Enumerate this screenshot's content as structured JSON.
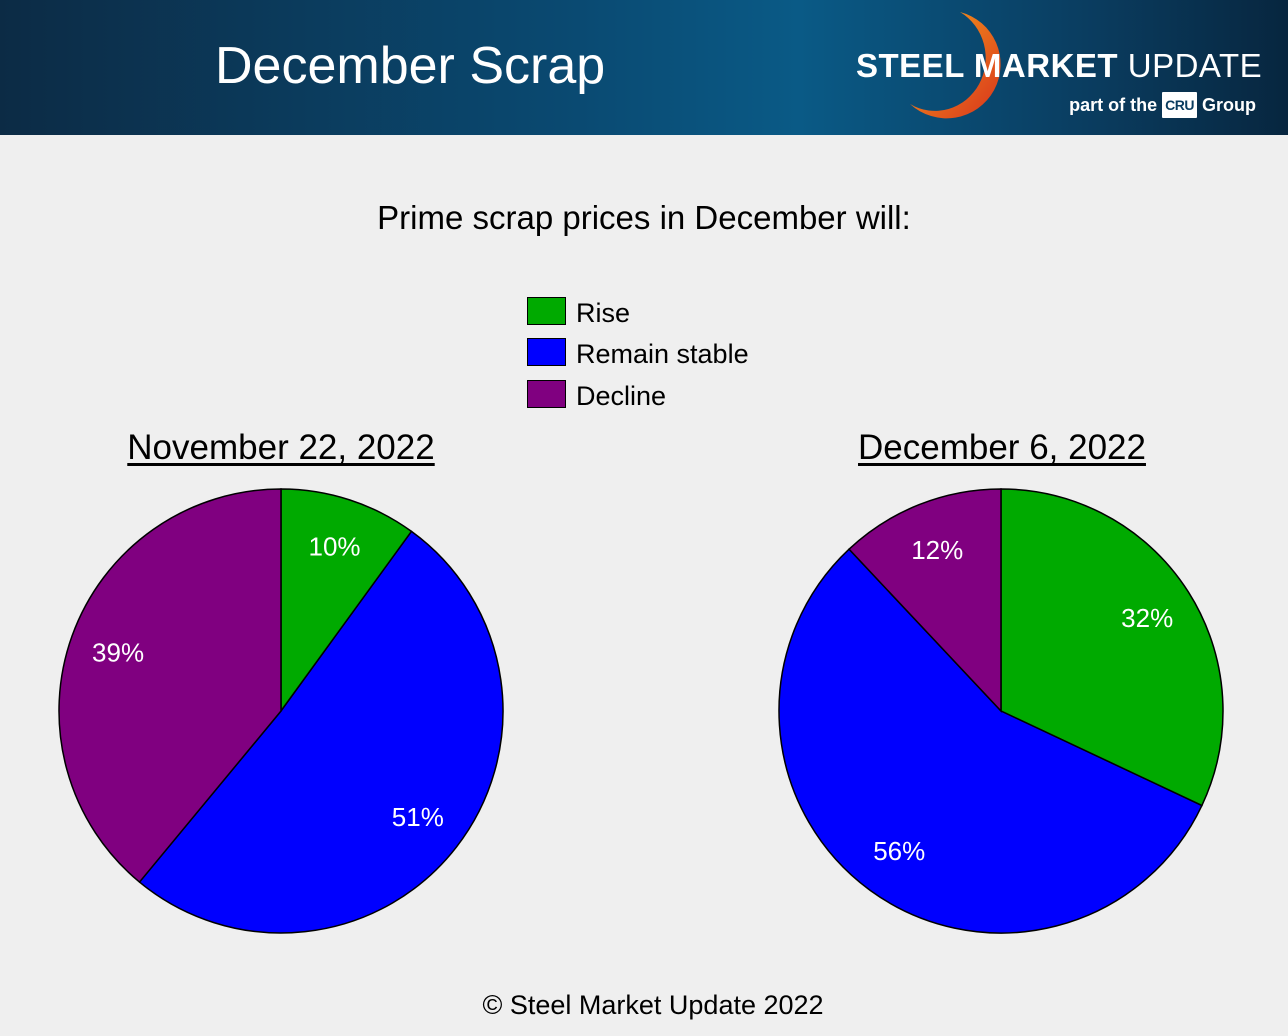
{
  "header": {
    "title": "December Scrap",
    "logo_bold": "STEEL MARKET",
    "logo_regular": "UPDATE",
    "logo_sub_prefix": "part of the",
    "logo_badge": "CRU",
    "logo_sub_suffix": "Group"
  },
  "question": "Prime scrap prices in December will:",
  "legend": [
    {
      "label": "Rise",
      "color": "#00aa00"
    },
    {
      "label": "Remain stable",
      "color": "#0000ff"
    },
    {
      "label": "Decline",
      "color": "#800080"
    }
  ],
  "chart_data": [
    {
      "type": "pie",
      "title": "November 22, 2022",
      "categories": [
        "Rise",
        "Remain stable",
        "Decline"
      ],
      "values": [
        10,
        51,
        39
      ],
      "labels": [
        "10%",
        "51%",
        "39%"
      ],
      "colors": [
        "#00aa00",
        "#0000ff",
        "#800080"
      ]
    },
    {
      "type": "pie",
      "title": "December 6, 2022",
      "categories": [
        "Rise",
        "Remain stable",
        "Decline"
      ],
      "values": [
        32,
        56,
        12
      ],
      "labels": [
        "32%",
        "56%",
        "12%"
      ],
      "colors": [
        "#00aa00",
        "#0000ff",
        "#800080"
      ]
    }
  ],
  "footer": "© Steel Market Update 2022"
}
